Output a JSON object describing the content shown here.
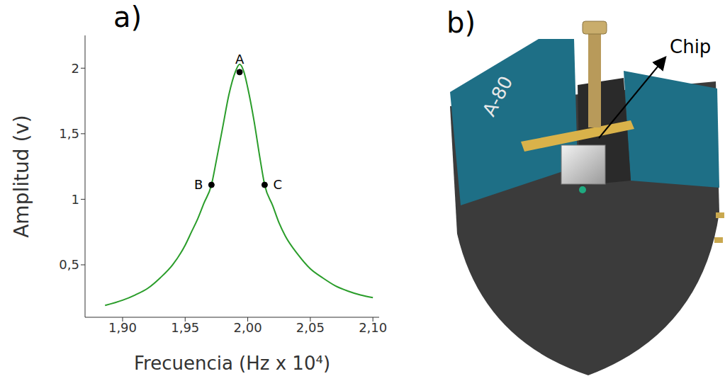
{
  "chart_data": {
    "type": "line",
    "title": "a)",
    "x_label": "Frecuencia (Hz x 10⁴)",
    "y_label": "Amplitud (v)",
    "x": [
      1.886,
      1.9,
      1.91,
      1.92,
      1.93,
      1.94,
      1.95,
      1.955,
      1.96,
      1.965,
      1.971,
      1.975,
      1.98,
      1.985,
      1.99,
      1.9935,
      1.997,
      2.0,
      2.005,
      2.01,
      2.0135,
      2.02,
      2.025,
      2.03,
      2.04,
      2.05,
      2.06,
      2.07,
      2.08,
      2.09,
      2.1
    ],
    "values": [
      0.19,
      0.23,
      0.27,
      0.32,
      0.4,
      0.5,
      0.65,
      0.75,
      0.85,
      0.97,
      1.11,
      1.3,
      1.55,
      1.8,
      1.97,
      2.03,
      1.97,
      1.85,
      1.6,
      1.3,
      1.11,
      0.95,
      0.82,
      0.72,
      0.58,
      0.47,
      0.4,
      0.34,
      0.3,
      0.27,
      0.25
    ],
    "color": "#2a9d2a",
    "xlim": [
      1.87,
      2.105
    ],
    "xticks": [
      {
        "value": 1.9,
        "label": "1,90"
      },
      {
        "value": 1.95,
        "label": "1,95"
      },
      {
        "value": 2.0,
        "label": "2,00"
      },
      {
        "value": 2.05,
        "label": "2,05"
      },
      {
        "value": 2.1,
        "label": "2,10"
      }
    ],
    "ylim": [
      0.1,
      2.25
    ],
    "yticks": [
      {
        "value": 0.5,
        "label": "0,5"
      },
      1,
      {
        "value": 1.5,
        "label": "1,5"
      },
      2
    ],
    "grid": false,
    "annotations": [
      {
        "text": "A",
        "x": 1.9935,
        "y": 1.97
      },
      {
        "text": "B",
        "x": 1.971,
        "y": 1.11
      },
      {
        "text": "C",
        "x": 2.0135,
        "y": 1.11
      }
    ]
  },
  "photo": {
    "panel_label": "b)",
    "callout": "Chip",
    "plate_text": "A-80"
  }
}
